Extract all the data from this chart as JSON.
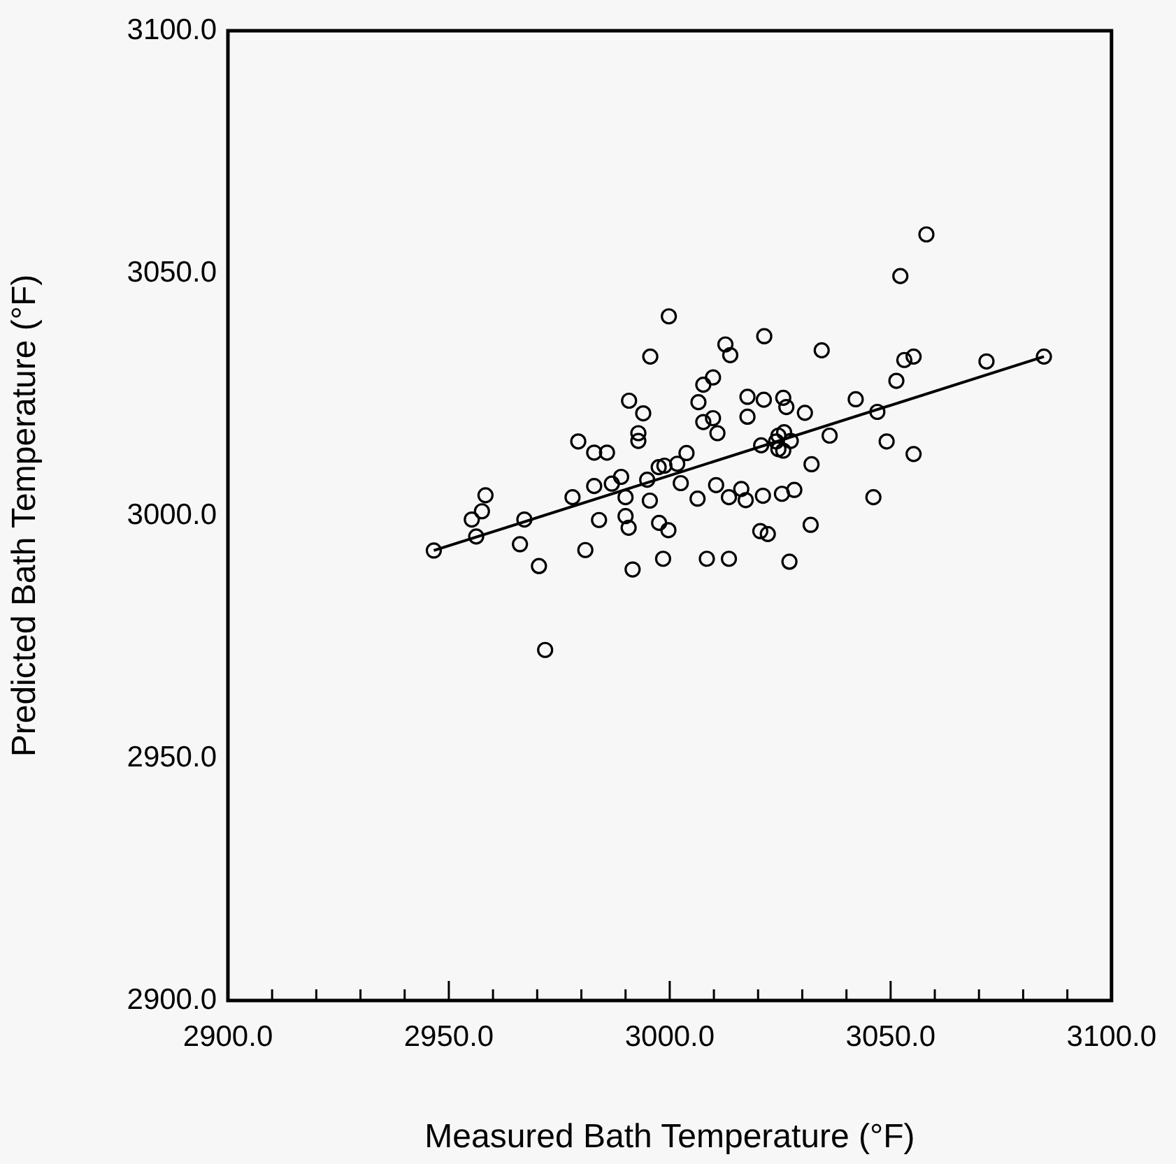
{
  "chart_data": {
    "type": "scatter",
    "xlabel": "Measured Bath Temperature (°F)",
    "ylabel": "Predicted Bath Temperature (°F)",
    "xlim": [
      2900,
      3100
    ],
    "ylim": [
      2900,
      3100
    ],
    "xticks": [
      {
        "value": 2900,
        "label": "2900.0"
      },
      {
        "value": 2910,
        "label": null
      },
      {
        "value": 2920,
        "label": null
      },
      {
        "value": 2930,
        "label": null
      },
      {
        "value": 2940,
        "label": null
      },
      {
        "value": 2950,
        "label": "2950.0"
      },
      {
        "value": 2960,
        "label": null
      },
      {
        "value": 2970,
        "label": null
      },
      {
        "value": 2980,
        "label": null
      },
      {
        "value": 2990,
        "label": null
      },
      {
        "value": 3000,
        "label": "3000.0"
      },
      {
        "value": 3010,
        "label": null
      },
      {
        "value": 3020,
        "label": null
      },
      {
        "value": 3030,
        "label": null
      },
      {
        "value": 3040,
        "label": null
      },
      {
        "value": 3050,
        "label": "3050.0"
      },
      {
        "value": 3060,
        "label": null
      },
      {
        "value": 3070,
        "label": null
      },
      {
        "value": 3080,
        "label": null
      },
      {
        "value": 3090,
        "label": null
      },
      {
        "value": 3100,
        "label": "3100.0"
      }
    ],
    "yticks": [
      {
        "value": 2900,
        "label": "2900.0"
      },
      {
        "value": 2950,
        "label": "2950.0"
      },
      {
        "value": 3000,
        "label": "3000.0"
      },
      {
        "value": 3050,
        "label": "3050.0"
      },
      {
        "value": 3100,
        "label": "3100.0"
      }
    ],
    "grid": false,
    "legend": false,
    "marker": "circle",
    "series": [
      {
        "type": "scatter",
        "color": "#000000",
        "x": [
          2946.6,
          2956.2,
          2955.2,
          2957.5,
          2958.3,
          2967.1,
          2966.1,
          2970.4,
          2971.8,
          2978.0,
          2979.3,
          2982.9,
          2985.8,
          2982.9,
          2984.0,
          2980.9,
          2986.9,
          2989.0,
          2990.0,
          2990.0,
          2990.7,
          2990.8,
          2992.9,
          2992.9,
          2994.0,
          2991.6,
          2995.6,
          2999.8,
          2994.9,
          2995.5,
          2997.5,
          2998.8,
          2997.6,
          2999.7,
          2998.5,
          3002.5,
          3001.7,
          3003.8,
          3006.3,
          3007.6,
          3009.8,
          3006.5,
          3007.6,
          3009.8,
          3010.8,
          3012.6,
          3013.7,
          3010.5,
          3013.4,
          3016.2,
          3017.2,
          3008.4,
          3013.4,
          3017.6,
          3017.6,
          3058.1,
          3052.2,
          3021.4,
          3034.4,
          3053.1,
          3055.2,
          3071.7,
          3084.7,
          3051.3,
          3021.3,
          3025.7,
          3026.4,
          3030.6,
          3042.1,
          3047.0,
          3020.7,
          3024.6,
          3025.9,
          3027.4,
          3024.6,
          3025.7,
          3024.1,
          3036.2,
          3032.1,
          3049.1,
          3055.2,
          3021.1,
          3025.4,
          3028.2,
          3046.1,
          3020.5,
          3022.2,
          3031.9,
          3027.1
        ],
        "values": [
          2992.8,
          2995.7,
          2999.2,
          3000.9,
          3004.2,
          2999.2,
          2994.1,
          2989.6,
          2972.3,
          3003.8,
          3015.3,
          3013.0,
          3013.0,
          3006.1,
          2999.1,
          2992.9,
          3006.6,
          3008.0,
          3003.8,
          2999.9,
          2997.5,
          3023.7,
          3017.0,
          3015.4,
          3021.1,
          2988.9,
          3032.8,
          3041.1,
          3007.4,
          3003.1,
          3010.0,
          3010.3,
          2998.5,
          2997.0,
          2991.1,
          3006.7,
          3010.7,
          3012.9,
          3003.5,
          3027.0,
          3028.5,
          3023.4,
          3019.3,
          3020.1,
          3017.0,
          3035.3,
          3033.1,
          3006.3,
          3003.8,
          3005.5,
          3003.2,
          2991.1,
          2991.1,
          3024.5,
          3020.4,
          3058.0,
          3049.4,
          3037.0,
          3034.1,
          3032.1,
          3032.8,
          3031.8,
          3032.8,
          3027.8,
          3023.9,
          3024.3,
          3022.4,
          3021.2,
          3024.0,
          3021.4,
          3014.5,
          3016.5,
          3017.2,
          3015.4,
          3013.7,
          3013.4,
          3015.3,
          3016.5,
          3010.6,
          3015.3,
          3012.7,
          3004.1,
          3004.5,
          3005.3,
          3003.8,
          2996.8,
          2996.2,
          2998.1,
          2990.5
        ]
      },
      {
        "type": "line",
        "color": "#000000",
        "marker": "none",
        "line_style": "solid",
        "x": [
          2946.6,
          3084.7
        ],
        "values": [
          2992.8,
          3032.8
        ]
      }
    ]
  }
}
